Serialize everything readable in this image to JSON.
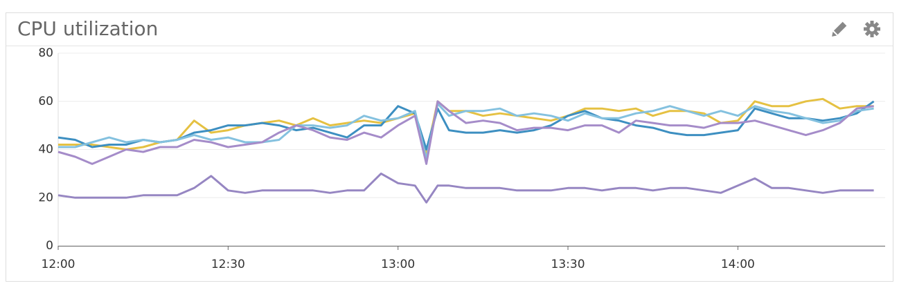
{
  "title": "CPU utilization",
  "chart_data": {
    "type": "line",
    "x": [
      "12:00",
      "12:03",
      "12:06",
      "12:09",
      "12:12",
      "12:15",
      "12:18",
      "12:21",
      "12:24",
      "12:27",
      "12:30",
      "12:33",
      "12:36",
      "12:39",
      "12:42",
      "12:45",
      "12:48",
      "12:51",
      "12:54",
      "12:57",
      "13:00",
      "13:03",
      "13:05",
      "13:07",
      "13:09",
      "13:12",
      "13:15",
      "13:18",
      "13:21",
      "13:24",
      "13:27",
      "13:30",
      "13:33",
      "13:36",
      "13:39",
      "13:42",
      "13:45",
      "13:48",
      "13:51",
      "13:54",
      "13:57",
      "14:00",
      "14:03",
      "14:06",
      "14:09",
      "14:12",
      "14:15",
      "14:18",
      "14:21",
      "14:24"
    ],
    "xlim": [
      "12:00",
      "14:26"
    ],
    "xticks": [
      "12:00",
      "12:30",
      "13:00",
      "13:30",
      "14:00"
    ],
    "ylim": [
      0,
      80
    ],
    "yticks": [
      0,
      20,
      40,
      60,
      80
    ],
    "grid": true,
    "series": [
      {
        "color": "#9686c2",
        "values": [
          21,
          20,
          20,
          20,
          20,
          21,
          21,
          21,
          24,
          29,
          23,
          22,
          23,
          23,
          23,
          23,
          22,
          23,
          23,
          30,
          26,
          25,
          18,
          25,
          25,
          24,
          24,
          24,
          23,
          23,
          23,
          24,
          24,
          23,
          24,
          24,
          23,
          24,
          24,
          23,
          22,
          25,
          28,
          24,
          24,
          23,
          22,
          23,
          23,
          23
        ]
      },
      {
        "color": "#e5c142",
        "values": [
          42,
          42,
          42,
          41,
          40,
          41,
          43,
          44,
          52,
          47,
          48,
          50,
          51,
          52,
          50,
          53,
          50,
          51,
          52,
          51,
          53,
          55,
          38,
          60,
          56,
          56,
          54,
          55,
          54,
          53,
          52,
          54,
          57,
          57,
          56,
          57,
          54,
          56,
          56,
          55,
          51,
          52,
          60,
          58,
          58,
          60,
          61,
          57,
          58,
          58
        ]
      },
      {
        "color": "#3d8fc1",
        "values": [
          45,
          44,
          41,
          42,
          42,
          44,
          43,
          44,
          47,
          48,
          50,
          50,
          51,
          50,
          48,
          49,
          47,
          45,
          50,
          50,
          58,
          55,
          40,
          57,
          48,
          47,
          47,
          48,
          47,
          48,
          50,
          54,
          56,
          53,
          52,
          50,
          49,
          47,
          46,
          46,
          47,
          48,
          57,
          55,
          53,
          53,
          52,
          53,
          55,
          60
        ]
      },
      {
        "color": "#84c1df",
        "values": [
          41,
          41,
          43,
          45,
          43,
          44,
          43,
          44,
          46,
          44,
          45,
          43,
          43,
          44,
          50,
          50,
          49,
          50,
          54,
          52,
          53,
          56,
          36,
          59,
          54,
          56,
          56,
          57,
          54,
          55,
          54,
          52,
          55,
          53,
          53,
          55,
          56,
          58,
          56,
          54,
          56,
          54,
          58,
          56,
          55,
          53,
          51,
          52,
          56,
          57
        ]
      },
      {
        "color": "#a58cc9",
        "values": [
          39,
          37,
          34,
          37,
          40,
          39,
          41,
          41,
          44,
          43,
          41,
          42,
          43,
          47,
          50,
          48,
          45,
          44,
          47,
          45,
          50,
          54,
          34,
          60,
          56,
          51,
          52,
          51,
          48,
          49,
          49,
          48,
          50,
          50,
          47,
          52,
          51,
          50,
          50,
          49,
          51,
          51,
          52,
          50,
          48,
          46,
          48,
          51,
          57,
          58
        ]
      }
    ]
  }
}
